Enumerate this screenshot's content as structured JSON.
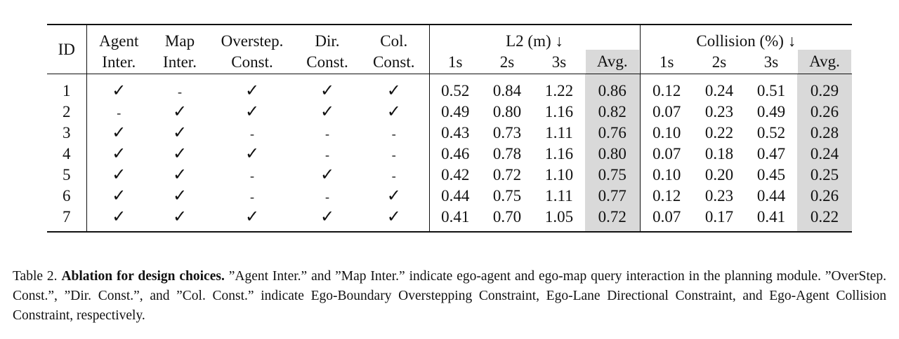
{
  "table": {
    "headers": {
      "id": "ID",
      "agent_inter_line1": "Agent",
      "agent_inter_line2": "Inter.",
      "map_inter_line1": "Map",
      "map_inter_line2": "Inter.",
      "overstep_line1": "Overstep.",
      "overstep_line2": "Const.",
      "dir_line1": "Dir.",
      "dir_line2": "Const.",
      "col_line1": "Col.",
      "col_line2": "Const.",
      "l2_group": "L2 (m) ↓",
      "collision_group": "Collision (%) ↓",
      "t1": "1s",
      "t2": "2s",
      "t3": "3s",
      "avg": "Avg."
    },
    "rows": [
      {
        "id": "1",
        "agent": "✓",
        "map": "-",
        "overstep": "✓",
        "dir": "✓",
        "col": "✓",
        "l2_1s": "0.52",
        "l2_2s": "0.84",
        "l2_3s": "1.22",
        "l2_avg": "0.86",
        "col_1s": "0.12",
        "col_2s": "0.24",
        "col_3s": "0.51",
        "col_avg": "0.29"
      },
      {
        "id": "2",
        "agent": "-",
        "map": "✓",
        "overstep": "✓",
        "dir": "✓",
        "col": "✓",
        "l2_1s": "0.49",
        "l2_2s": "0.80",
        "l2_3s": "1.16",
        "l2_avg": "0.82",
        "col_1s": "0.07",
        "col_2s": "0.23",
        "col_3s": "0.49",
        "col_avg": "0.26"
      },
      {
        "id": "3",
        "agent": "✓",
        "map": "✓",
        "overstep": "-",
        "dir": "-",
        "col": "-",
        "l2_1s": "0.43",
        "l2_2s": "0.73",
        "l2_3s": "1.11",
        "l2_avg": "0.76",
        "col_1s": "0.10",
        "col_2s": "0.22",
        "col_3s": "0.52",
        "col_avg": "0.28"
      },
      {
        "id": "4",
        "agent": "✓",
        "map": "✓",
        "overstep": "✓",
        "dir": "-",
        "col": "-",
        "l2_1s": "0.46",
        "l2_2s": "0.78",
        "l2_3s": "1.16",
        "l2_avg": "0.80",
        "col_1s": "0.07",
        "col_2s": "0.18",
        "col_3s": "0.47",
        "col_avg": "0.24"
      },
      {
        "id": "5",
        "agent": "✓",
        "map": "✓",
        "overstep": "-",
        "dir": "✓",
        "col": "-",
        "l2_1s": "0.42",
        "l2_2s": "0.72",
        "l2_3s": "1.10",
        "l2_avg": "0.75",
        "col_1s": "0.10",
        "col_2s": "0.20",
        "col_3s": "0.45",
        "col_avg": "0.25"
      },
      {
        "id": "6",
        "agent": "✓",
        "map": "✓",
        "overstep": "-",
        "dir": "-",
        "col": "✓",
        "l2_1s": "0.44",
        "l2_2s": "0.75",
        "l2_3s": "1.11",
        "l2_avg": "0.77",
        "col_1s": "0.12",
        "col_2s": "0.23",
        "col_3s": "0.44",
        "col_avg": "0.26"
      },
      {
        "id": "7",
        "agent": "✓",
        "map": "✓",
        "overstep": "✓",
        "dir": "✓",
        "col": "✓",
        "l2_1s": "0.41",
        "l2_2s": "0.70",
        "l2_3s": "1.05",
        "l2_avg": "0.72",
        "col_1s": "0.07",
        "col_2s": "0.17",
        "col_3s": "0.41",
        "col_avg": "0.22"
      }
    ]
  },
  "caption": {
    "label": "Table 2.",
    "bold_title": "Ablation for design choices.",
    "body": "”Agent Inter.” and ”Map Inter.” indicate ego-agent and ego-map query interaction in the planning module. ”OverStep. Const.”, ”Dir. Const.”, and ”Col. Const.” indicate Ego-Boundary Overstepping Constraint, Ego-Lane Directional Constraint, and Ego-Agent Collision Constraint, respectively."
  },
  "colors": {
    "avg_highlight": "#d9d9d9",
    "text": "#111111"
  }
}
